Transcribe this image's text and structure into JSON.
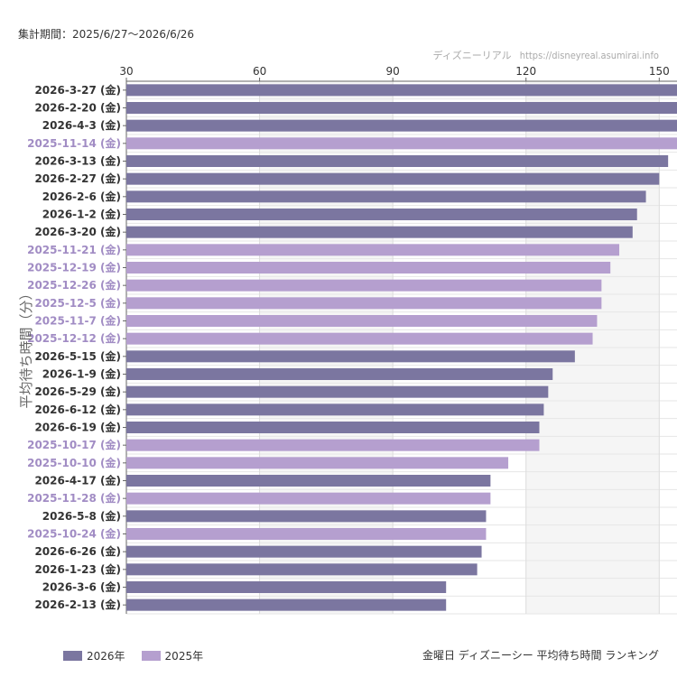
{
  "header": {
    "period": "集計期間：2025/6/27〜2026/6/26",
    "site_name": "ディズニーリアル",
    "site_url": "https://disneyreal.asumirai.info"
  },
  "footer": {
    "title": "金曜日 ディズニーシー 平均待ち時間 ランキング"
  },
  "colors": {
    "series_2026": "#7b76a0",
    "series_2025": "#b59fcf",
    "label_2026": "#333333",
    "label_2025": "#a18cc4"
  },
  "chart_data": {
    "type": "bar",
    "orientation": "horizontal",
    "ylabel": "平均待ち時間（分）",
    "xlim": [
      30,
      154
    ],
    "xticks": [
      30,
      60,
      90,
      120,
      150
    ],
    "xaxis_position": "top",
    "grid": true,
    "legend_placement": "bottom-left",
    "legend": [
      {
        "label": "2026年",
        "series": "2026"
      },
      {
        "label": "2025年",
        "series": "2025"
      }
    ],
    "bars": [
      {
        "label": "2026-3-27 (金)",
        "value": 156,
        "series": "2026"
      },
      {
        "label": "2026-2-20 (金)",
        "value": 155,
        "series": "2026"
      },
      {
        "label": "2026-4-3 (金)",
        "value": 154,
        "series": "2026"
      },
      {
        "label": "2025-11-14 (金)",
        "value": 154,
        "series": "2025"
      },
      {
        "label": "2026-3-13 (金)",
        "value": 152,
        "series": "2026"
      },
      {
        "label": "2026-2-27 (金)",
        "value": 150,
        "series": "2026"
      },
      {
        "label": "2026-2-6 (金)",
        "value": 147,
        "series": "2026"
      },
      {
        "label": "2026-1-2 (金)",
        "value": 145,
        "series": "2026"
      },
      {
        "label": "2026-3-20 (金)",
        "value": 144,
        "series": "2026"
      },
      {
        "label": "2025-11-21 (金)",
        "value": 141,
        "series": "2025"
      },
      {
        "label": "2025-12-19 (金)",
        "value": 139,
        "series": "2025"
      },
      {
        "label": "2025-12-26 (金)",
        "value": 137,
        "series": "2025"
      },
      {
        "label": "2025-12-5 (金)",
        "value": 137,
        "series": "2025"
      },
      {
        "label": "2025-11-7 (金)",
        "value": 136,
        "series": "2025"
      },
      {
        "label": "2025-12-12 (金)",
        "value": 135,
        "series": "2025"
      },
      {
        "label": "2026-5-15 (金)",
        "value": 131,
        "series": "2026"
      },
      {
        "label": "2026-1-9 (金)",
        "value": 126,
        "series": "2026"
      },
      {
        "label": "2026-5-29 (金)",
        "value": 125,
        "series": "2026"
      },
      {
        "label": "2026-6-12 (金)",
        "value": 124,
        "series": "2026"
      },
      {
        "label": "2026-6-19 (金)",
        "value": 123,
        "series": "2026"
      },
      {
        "label": "2025-10-17 (金)",
        "value": 123,
        "series": "2025"
      },
      {
        "label": "2025-10-10 (金)",
        "value": 116,
        "series": "2025"
      },
      {
        "label": "2026-4-17 (金)",
        "value": 112,
        "series": "2026"
      },
      {
        "label": "2025-11-28 (金)",
        "value": 112,
        "series": "2025"
      },
      {
        "label": "2026-5-8 (金)",
        "value": 111,
        "series": "2026"
      },
      {
        "label": "2025-10-24 (金)",
        "value": 111,
        "series": "2025"
      },
      {
        "label": "2026-6-26 (金)",
        "value": 110,
        "series": "2026"
      },
      {
        "label": "2026-1-23 (金)",
        "value": 109,
        "series": "2026"
      },
      {
        "label": "2026-3-6 (金)",
        "value": 102,
        "series": "2026"
      },
      {
        "label": "2026-2-13 (金)",
        "value": 102,
        "series": "2026"
      }
    ]
  }
}
